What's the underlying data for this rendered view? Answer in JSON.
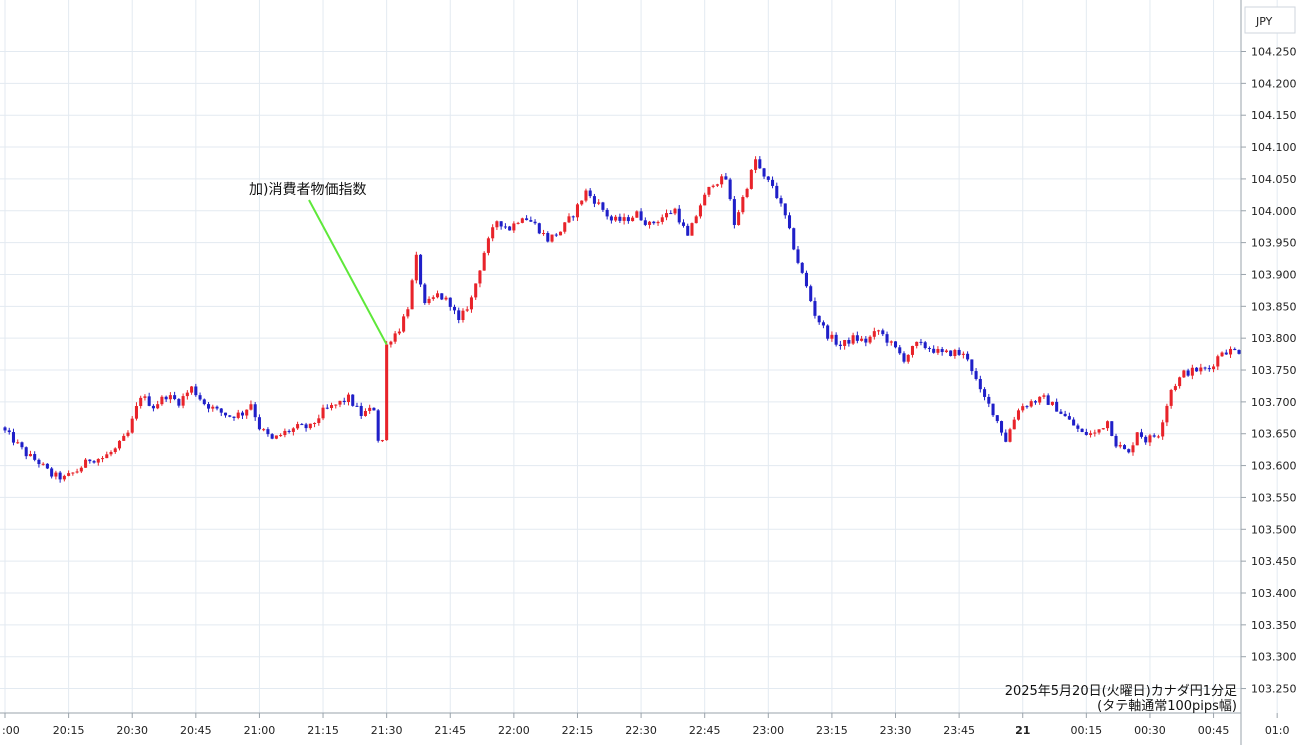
{
  "chart_data": {
    "type": "candlestick",
    "unit_label": "JPY",
    "caption": [
      "2025年5月20日(火曜日)カナダ円1分足",
      "(タテ軸通常100pips幅)"
    ],
    "ylim": [
      103.24,
      104.28
    ],
    "y_ticks": [
      104.25,
      104.2,
      104.15,
      104.1,
      104.05,
      104.0,
      103.95,
      103.9,
      103.85,
      103.8,
      103.75,
      103.7,
      103.65,
      103.6,
      103.55,
      103.5,
      103.45,
      103.4,
      103.35,
      103.3,
      103.25
    ],
    "y_tick_labels": [
      "104.250",
      "104.200",
      "104.150",
      "104.100",
      "104.050",
      "104.000",
      "103.950",
      "103.900",
      "103.850",
      "103.800",
      "103.750",
      "103.700",
      "103.650",
      "103.600",
      "103.550",
      "103.500",
      "103.450",
      "103.400",
      "103.350",
      "103.300",
      "103.250"
    ],
    "x_tick_labels": [
      ":00",
      "20:15",
      "20:30",
      "20:45",
      "21:00",
      "21:15",
      "21:30",
      "21:45",
      "22:00",
      "22:15",
      "22:30",
      "22:45",
      "23:00",
      "23:15",
      "23:30",
      "23:45",
      "21",
      "00:15",
      "00:30",
      "00:45",
      "01:0"
    ],
    "x_range_minutes": [
      0,
      291
    ],
    "colors": {
      "up": "#e8232a",
      "down": "#1f1fc8",
      "annotation_line": "#5ee83a",
      "grid": "#e3eaf1"
    },
    "annotation": {
      "text": "加)消費者物価指数",
      "minute": 90,
      "price": 103.79
    },
    "path": [
      [
        0,
        103.66
      ],
      [
        3,
        103.64
      ],
      [
        6,
        103.618
      ],
      [
        9,
        103.605
      ],
      [
        12,
        103.585
      ],
      [
        15,
        103.58
      ],
      [
        18,
        103.592
      ],
      [
        21,
        103.61
      ],
      [
        24,
        103.612
      ],
      [
        27,
        103.625
      ],
      [
        30,
        103.65
      ],
      [
        33,
        103.71
      ],
      [
        36,
        103.693
      ],
      [
        39,
        103.71
      ],
      [
        42,
        103.7
      ],
      [
        45,
        103.722
      ],
      [
        48,
        103.698
      ],
      [
        51,
        103.686
      ],
      [
        54,
        103.678
      ],
      [
        57,
        103.682
      ],
      [
        59,
        103.698
      ],
      [
        61,
        103.66
      ],
      [
        64,
        103.64
      ],
      [
        67,
        103.652
      ],
      [
        70,
        103.66
      ],
      [
        73,
        103.66
      ],
      [
        76,
        103.685
      ],
      [
        79,
        103.695
      ],
      [
        82,
        103.706
      ],
      [
        85,
        103.68
      ],
      [
        88,
        103.69
      ],
      [
        89,
        103.642
      ],
      [
        90,
        103.79
      ],
      [
        92,
        103.8
      ],
      [
        94,
        103.815
      ],
      [
        96,
        103.85
      ],
      [
        98,
        103.925
      ],
      [
        100,
        103.85
      ],
      [
        103,
        103.868
      ],
      [
        106,
        103.855
      ],
      [
        108,
        103.825
      ],
      [
        111,
        103.862
      ],
      [
        114,
        103.935
      ],
      [
        117,
        103.985
      ],
      [
        120,
        103.972
      ],
      [
        123,
        103.993
      ],
      [
        126,
        103.978
      ],
      [
        129,
        103.955
      ],
      [
        132,
        103.968
      ],
      [
        135,
        103.995
      ],
      [
        138,
        104.03
      ],
      [
        141,
        104.01
      ],
      [
        144,
        103.985
      ],
      [
        147,
        103.985
      ],
      [
        150,
        103.995
      ],
      [
        153,
        103.978
      ],
      [
        156,
        103.99
      ],
      [
        159,
        104.002
      ],
      [
        162,
        103.958
      ],
      [
        165,
        104.01
      ],
      [
        168,
        104.045
      ],
      [
        171,
        104.05
      ],
      [
        173,
        103.98
      ],
      [
        176,
        104.04
      ],
      [
        178,
        104.08
      ],
      [
        180,
        104.05
      ],
      [
        182,
        104.04
      ],
      [
        185,
        103.99
      ],
      [
        188,
        103.92
      ],
      [
        190,
        103.88
      ],
      [
        192,
        103.838
      ],
      [
        195,
        103.805
      ],
      [
        198,
        103.788
      ],
      [
        201,
        103.8
      ],
      [
        204,
        103.795
      ],
      [
        207,
        103.812
      ],
      [
        210,
        103.79
      ],
      [
        213,
        103.768
      ],
      [
        216,
        103.79
      ],
      [
        219,
        103.785
      ],
      [
        222,
        103.775
      ],
      [
        225,
        103.778
      ],
      [
        228,
        103.77
      ],
      [
        231,
        103.715
      ],
      [
        234,
        103.685
      ],
      [
        237,
        103.64
      ],
      [
        240,
        103.69
      ],
      [
        243,
        103.7
      ],
      [
        246,
        103.705
      ],
      [
        249,
        103.69
      ],
      [
        252,
        103.67
      ],
      [
        255,
        103.65
      ],
      [
        258,
        103.65
      ],
      [
        261,
        103.67
      ],
      [
        263,
        103.635
      ],
      [
        266,
        103.618
      ],
      [
        268,
        103.655
      ],
      [
        270,
        103.64
      ],
      [
        273,
        103.65
      ],
      [
        276,
        103.72
      ],
      [
        279,
        103.745
      ],
      [
        282,
        103.75
      ],
      [
        285,
        103.752
      ],
      [
        288,
        103.78
      ],
      [
        291,
        103.78
      ]
    ]
  }
}
